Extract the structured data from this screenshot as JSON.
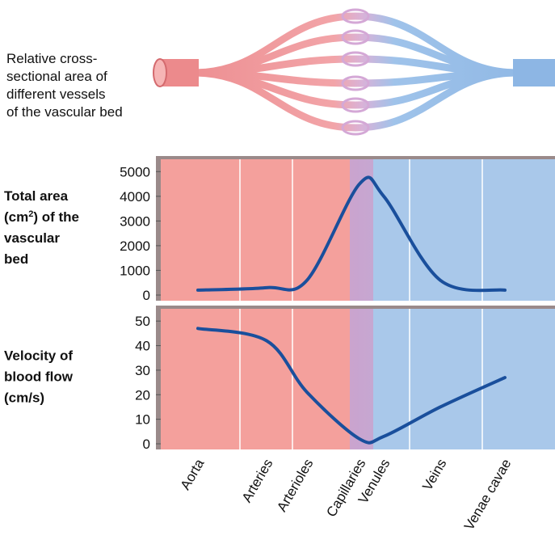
{
  "illustration": {
    "caption_lines": [
      "Relative cross-",
      "sectional area of",
      "different vessels",
      "of the vascular bed"
    ]
  },
  "chart_data": [
    {
      "type": "line",
      "ylabel_lines": [
        "Total area",
        [
          "(cm",
          "2",
          ") of the"
        ],
        "vascular",
        "bed"
      ],
      "ylim": [
        0,
        5500
      ],
      "yticks": [
        0,
        1000,
        2000,
        3000,
        4000,
        5000
      ],
      "series": [
        {
          "color": "#1a4f9c",
          "values": [
            200,
            300,
            600,
            4500,
            4000,
            600,
            200
          ]
        }
      ]
    },
    {
      "type": "line",
      "ylabel_lines": [
        "Velocity of",
        "blood flow",
        "(cm/s)"
      ],
      "ylim": [
        0,
        55
      ],
      "yticks": [
        0,
        10,
        20,
        30,
        40,
        50
      ],
      "categories": [
        "Aorta",
        "Arteries",
        "Arterioles",
        "Capillaries",
        "Venules",
        "Veins",
        "Venae cavae"
      ],
      "series": [
        {
          "color": "#1a4f9c",
          "values": [
            47,
            42,
            21,
            2,
            3,
            15,
            27
          ]
        }
      ]
    }
  ]
}
